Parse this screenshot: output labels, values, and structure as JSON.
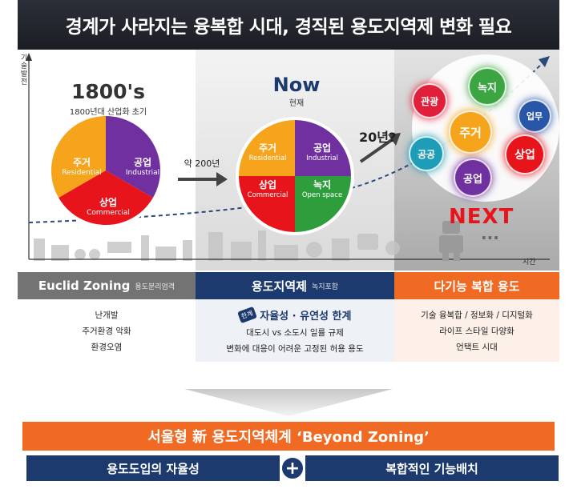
{
  "title": "경계가 사라지는 융복합 시대, 경직된 용도지역제 변화 필요",
  "axis": {
    "y_label": "기술발전",
    "x_label": "시간"
  },
  "era_1800": {
    "heading": "1800's",
    "subheading": "1800년대 산업화 초기",
    "slices": [
      {
        "ko": "주거",
        "en": "Residential",
        "color": "#f6a41c"
      },
      {
        "ko": "공업",
        "en": "Industrial",
        "color": "#7030a0"
      },
      {
        "ko": "상업",
        "en": "Commercial",
        "color": "#e8141b"
      }
    ]
  },
  "transition_1": "약 200년",
  "era_now": {
    "heading": "Now",
    "subheading": "현재",
    "slices": [
      {
        "ko": "주거",
        "en": "Residential",
        "color": "#f6a41c"
      },
      {
        "ko": "공업",
        "en": "Industrial",
        "color": "#7030a0"
      },
      {
        "ko": "상업",
        "en": "Commercial",
        "color": "#e8141b"
      },
      {
        "ko": "녹지",
        "en": "Open space",
        "color": "#2e9e3c"
      }
    ]
  },
  "transition_2": "20년?",
  "era_next": {
    "heading": "NEXT",
    "ellipsis": "...",
    "bubbles": [
      {
        "label": "관광",
        "color": "#e0203b"
      },
      {
        "label": "녹지",
        "color": "#3aa541"
      },
      {
        "label": "업무",
        "color": "#2856a8"
      },
      {
        "label": "주거",
        "color": "#f6a41c"
      },
      {
        "label": "공공",
        "color": "#1e9db8"
      },
      {
        "label": "상업",
        "color": "#e8141b"
      },
      {
        "label": "공업",
        "color": "#7030a0"
      }
    ]
  },
  "columns": [
    {
      "title": "Euclid Zoning",
      "subtitle": "용도분리엄격",
      "color": "#737373",
      "items": [
        "난개발",
        "주거환경 악화",
        "환경오염"
      ]
    },
    {
      "title": "용도지역제",
      "subtitle": "녹지포함",
      "color": "#1c3a6e",
      "badge": "한계",
      "highlight": "자율성 · 유연성 한계",
      "items": [
        "대도시 vs 소도시 일률 규제",
        "변화에 대응이 어려운 고정된 허용 용도"
      ]
    },
    {
      "title": "다기능 복합 용도",
      "subtitle": "",
      "color": "#f06a24",
      "items": [
        "기술 융복합 / 정보화 / 디지털화",
        "라이프 스타일 다양화",
        "언택트 시대"
      ]
    }
  ],
  "conclusion": {
    "banner": "서울형 新 용도지역체계 ‘Beyond Zoning’",
    "left": "용도도입의 자율성",
    "plus": "+",
    "right": "복합적인 기능배치"
  }
}
